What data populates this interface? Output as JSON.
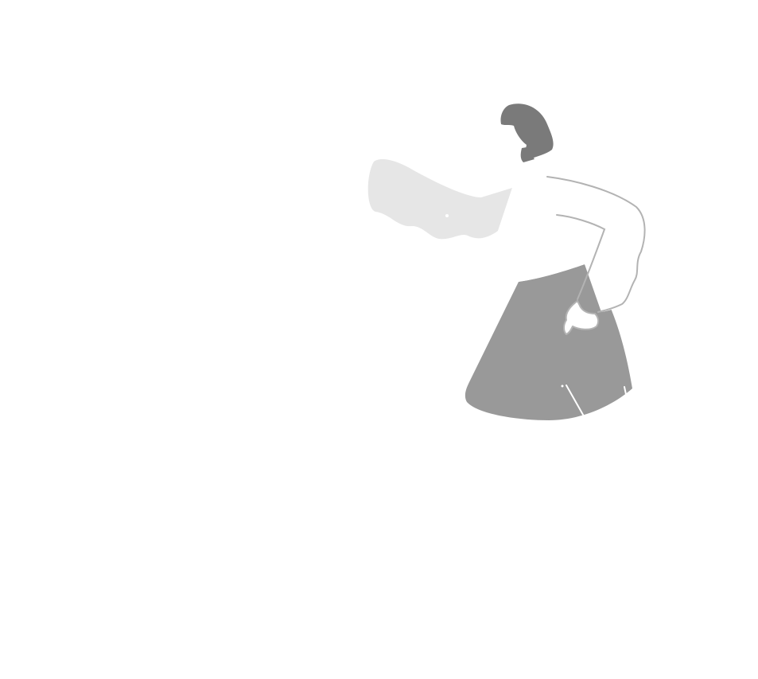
{
  "illustration": {
    "subject": "person-with-flowing-scarf",
    "colors": {
      "background": "#ffffff",
      "hair": "#7a7a7a",
      "skirt": "#999999",
      "scarf": "#e6e6e6",
      "shirt": "#ffffff",
      "outline": "#b3b3b3"
    }
  }
}
